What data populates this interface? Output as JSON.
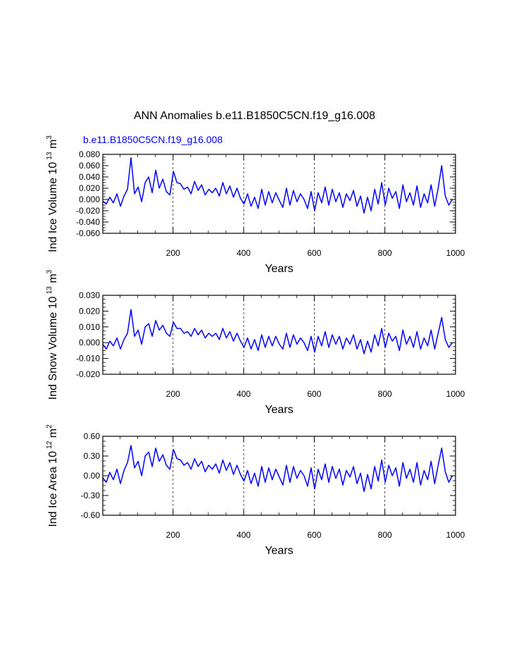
{
  "title": "ANN Anomalies b.e11.B1850C5CN.f19_g16.008",
  "subtitle": "b.e11.B1850C5CN.f19_g16.008",
  "colors": {
    "series": "#0000ff",
    "axis": "#000000",
    "grid": "#000000"
  },
  "chart_data": [
    {
      "type": "line",
      "ylabel_main": "Ind Ice Volume 10",
      "ylabel_exp": "13",
      "ylabel_unit": "m",
      "ylabel_unit_exp": "3",
      "xlabel": "Years",
      "xlim": [
        1,
        1000
      ],
      "ylim": [
        -0.06,
        0.08
      ],
      "yticks": [
        "0.080",
        "0.060",
        "0.040",
        "0.020",
        "0.000",
        "-0.020",
        "-0.040",
        "-0.060"
      ],
      "ytick_values": [
        0.08,
        0.06,
        0.04,
        0.02,
        0.0,
        -0.02,
        -0.04,
        -0.06
      ],
      "xticks": [
        "200",
        "400",
        "600",
        "800",
        "1000"
      ],
      "xtick_values": [
        200,
        400,
        600,
        800,
        1000
      ],
      "grid_x": [
        200,
        400,
        600,
        800
      ],
      "series": [
        {
          "name": "Ind Ice Volume",
          "values_x_start": 1,
          "values_x_step": 10,
          "values": [
            -0.003,
            -0.008,
            0.004,
            -0.006,
            0.01,
            -0.012,
            0.006,
            0.018,
            0.074,
            0.01,
            0.022,
            -0.004,
            0.03,
            0.04,
            0.012,
            0.052,
            0.02,
            0.036,
            0.014,
            0.008,
            0.05,
            0.03,
            0.028,
            0.018,
            0.022,
            0.01,
            0.032,
            0.016,
            0.026,
            0.008,
            0.018,
            0.012,
            0.02,
            0.006,
            0.03,
            0.01,
            0.024,
            0.004,
            0.02,
            0.002,
            -0.008,
            0.01,
            -0.012,
            0.004,
            -0.016,
            0.018,
            -0.01,
            0.014,
            -0.006,
            0.012,
            -0.002,
            -0.014,
            0.02,
            -0.01,
            0.016,
            -0.004,
            0.01,
            0.0,
            -0.016,
            0.014,
            -0.02,
            0.012,
            -0.006,
            0.022,
            -0.01,
            0.018,
            -0.004,
            0.012,
            -0.014,
            0.01,
            -0.002,
            0.016,
            -0.012,
            0.006,
            -0.024,
            0.004,
            -0.02,
            0.018,
            -0.008,
            0.03,
            -0.01,
            0.02,
            0.002,
            0.014,
            -0.016,
            0.026,
            -0.004,
            0.012,
            -0.01,
            0.024,
            -0.014,
            0.01,
            -0.006,
            0.026,
            -0.012,
            0.02,
            0.06,
            0.006,
            -0.01,
            0.0
          ]
        }
      ]
    },
    {
      "type": "line",
      "ylabel_main": "Ind Snow Volume 10",
      "ylabel_exp": "13",
      "ylabel_unit": "m",
      "ylabel_unit_exp": "3",
      "xlabel": "Years",
      "xlim": [
        1,
        1000
      ],
      "ylim": [
        -0.02,
        0.03
      ],
      "yticks": [
        "0.030",
        "0.020",
        "0.010",
        "0.000",
        "-0.010",
        "-0.020"
      ],
      "ytick_values": [
        0.03,
        0.02,
        0.01,
        0.0,
        -0.01,
        -0.02
      ],
      "xticks": [
        "200",
        "400",
        "600",
        "800",
        "1000"
      ],
      "xtick_values": [
        200,
        400,
        600,
        800,
        1000
      ],
      "grid_x": [
        200,
        400,
        600,
        800
      ],
      "series": [
        {
          "name": "Ind Snow Volume",
          "values_x_start": 1,
          "values_x_step": 10,
          "values": [
            -0.001,
            -0.004,
            0.001,
            -0.002,
            0.003,
            -0.004,
            0.002,
            0.006,
            0.021,
            0.004,
            0.008,
            -0.001,
            0.01,
            0.012,
            0.004,
            0.014,
            0.008,
            0.011,
            0.006,
            0.004,
            0.013,
            0.009,
            0.009,
            0.006,
            0.007,
            0.004,
            0.009,
            0.005,
            0.008,
            0.003,
            0.006,
            0.004,
            0.006,
            0.002,
            0.009,
            0.003,
            0.007,
            0.001,
            0.006,
            0.001,
            -0.003,
            0.003,
            -0.004,
            0.002,
            -0.005,
            0.005,
            -0.003,
            0.004,
            -0.002,
            0.004,
            -0.001,
            -0.004,
            0.006,
            -0.003,
            0.005,
            -0.001,
            0.003,
            0.0,
            -0.005,
            0.004,
            -0.006,
            0.004,
            -0.002,
            0.007,
            -0.003,
            0.005,
            -0.001,
            0.004,
            -0.004,
            0.003,
            -0.001,
            0.005,
            -0.004,
            0.002,
            -0.007,
            0.001,
            -0.006,
            0.005,
            -0.002,
            0.009,
            -0.003,
            0.006,
            0.001,
            0.004,
            -0.005,
            0.008,
            -0.001,
            0.004,
            -0.003,
            0.007,
            -0.004,
            0.003,
            -0.002,
            0.008,
            -0.004,
            0.006,
            0.016,
            0.002,
            -0.003,
            0.0
          ]
        }
      ]
    },
    {
      "type": "line",
      "ylabel_main": "Ind Ice Area 10",
      "ylabel_exp": "12",
      "ylabel_unit": "m",
      "ylabel_unit_exp": "2",
      "xlabel": "Years",
      "xlim": [
        1,
        1000
      ],
      "ylim": [
        -0.6,
        0.6
      ],
      "yticks": [
        "0.60",
        "0.30",
        "0.00",
        "-0.30",
        "-0.60"
      ],
      "ytick_values": [
        0.6,
        0.3,
        0.0,
        -0.3,
        -0.6
      ],
      "xticks": [
        "200",
        "400",
        "600",
        "800",
        "1000"
      ],
      "xtick_values": [
        200,
        400,
        600,
        800,
        1000
      ],
      "grid_x": [
        200,
        400,
        600,
        800
      ],
      "series": [
        {
          "name": "Ind Ice Area",
          "values_x_start": 1,
          "values_x_step": 10,
          "values": [
            -0.03,
            -0.1,
            0.05,
            -0.06,
            0.1,
            -0.12,
            0.08,
            0.2,
            0.46,
            0.12,
            0.22,
            0.0,
            0.3,
            0.36,
            0.14,
            0.42,
            0.22,
            0.32,
            0.16,
            0.1,
            0.4,
            0.26,
            0.24,
            0.16,
            0.2,
            0.1,
            0.26,
            0.14,
            0.22,
            0.06,
            0.16,
            0.1,
            0.18,
            0.04,
            0.24,
            0.08,
            0.2,
            0.02,
            0.16,
            0.02,
            -0.08,
            0.08,
            -0.12,
            0.04,
            -0.16,
            0.14,
            -0.1,
            0.12,
            -0.06,
            0.1,
            -0.02,
            -0.14,
            0.16,
            -0.1,
            0.14,
            -0.04,
            0.08,
            0.0,
            -0.16,
            0.12,
            -0.2,
            0.1,
            -0.06,
            0.18,
            -0.1,
            0.14,
            -0.04,
            0.1,
            -0.14,
            0.08,
            -0.02,
            0.14,
            -0.12,
            0.04,
            -0.24,
            0.02,
            -0.2,
            0.14,
            -0.08,
            0.24,
            -0.1,
            0.16,
            0.0,
            0.12,
            -0.16,
            0.2,
            -0.04,
            0.1,
            -0.1,
            0.2,
            -0.14,
            0.08,
            -0.06,
            0.22,
            -0.12,
            0.16,
            0.42,
            0.06,
            -0.1,
            0.0
          ]
        }
      ]
    }
  ]
}
